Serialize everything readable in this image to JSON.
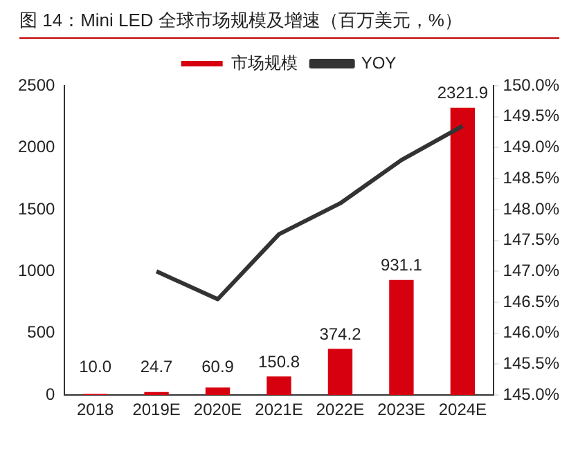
{
  "chart_data": {
    "type": "bar",
    "title": "图 14：Mini LED 全球市场规模及增速（百万美元，%）",
    "categories": [
      "2018",
      "2019E",
      "2020E",
      "2021E",
      "2022E",
      "2023E",
      "2024E"
    ],
    "series": [
      {
        "name": "市场规模",
        "color": "#d7000f",
        "values": [
          10.0,
          24.7,
          60.9,
          150.8,
          374.2,
          931.1,
          2321.9
        ],
        "value_labels": [
          "10.0",
          "24.7",
          "60.9",
          "150.8",
          "374.2",
          "931.1",
          "2321.9"
        ]
      },
      {
        "name": "YOY",
        "type": "line",
        "axis": "y2",
        "color": "#333333",
        "values": [
          null,
          147.0,
          146.55,
          147.6,
          148.1,
          148.8,
          149.35
        ]
      }
    ],
    "ylim": [
      0,
      2500
    ],
    "yticks": [
      0,
      500,
      1000,
      1500,
      2000,
      2500
    ],
    "y2lim": [
      145,
      150
    ],
    "y2ticks": [
      {
        "value": 145,
        "label": "145.0%"
      },
      {
        "value": 145.5,
        "label": "145.5%"
      },
      {
        "value": 146,
        "label": "146.0%"
      },
      {
        "value": 146.5,
        "label": "146.5%"
      },
      {
        "value": 147,
        "label": "147.0%"
      },
      {
        "value": 147.5,
        "label": "147.5%"
      },
      {
        "value": 148,
        "label": "148.0%"
      },
      {
        "value": 148.5,
        "label": "148.5%"
      },
      {
        "value": 149,
        "label": "149.0%"
      },
      {
        "value": 149.5,
        "label": "149.5%"
      },
      {
        "value": 150,
        "label": "150.0%"
      }
    ],
    "legend": "top",
    "grid": false,
    "marker": "none"
  }
}
